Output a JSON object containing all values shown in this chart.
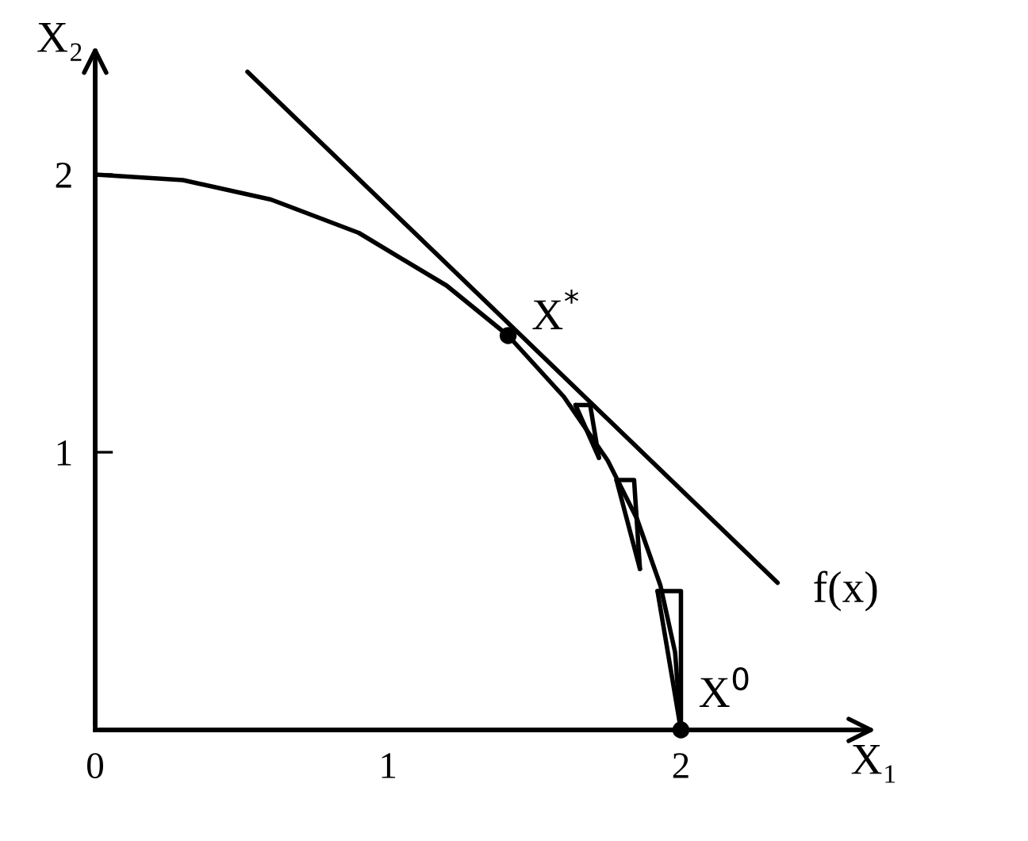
{
  "chart_data": {
    "type": "line",
    "xlabel": "X₁",
    "ylabel": "X₂",
    "xlim": [
      0,
      2.6
    ],
    "ylim": [
      0,
      2.4
    ],
    "xticks": [
      0,
      1,
      2
    ],
    "yticks": [
      1,
      2
    ],
    "grid": false,
    "legend": false,
    "series": [
      {
        "color": "#000000",
        "x": [
          0,
          0.3,
          0.6,
          0.9,
          1.2,
          1.41,
          1.6,
          1.75,
          1.85,
          1.93,
          1.98,
          2.0
        ],
        "values": [
          2.0,
          1.98,
          1.91,
          1.79,
          1.6,
          1.42,
          1.2,
          0.97,
          0.76,
          0.52,
          0.28,
          0
        ]
      },
      {
        "color": "#000000",
        "x": [
          0.52,
          2.33
        ],
        "values": [
          2.37,
          0.53
        ]
      },
      {
        "color": "#000000",
        "x": [
          1.92,
          2.0,
          2.0
        ],
        "values": [
          0.5,
          0.5,
          0
        ]
      },
      {
        "color": "#000000",
        "x": [
          1.92,
          2.0
        ],
        "values": [
          0.5,
          0
        ]
      },
      {
        "color": "#000000",
        "x": [
          1.78,
          1.84,
          1.86
        ],
        "values": [
          0.9,
          0.9,
          0.58
        ]
      },
      {
        "color": "#000000",
        "x": [
          1.78,
          1.86
        ],
        "values": [
          0.9,
          0.58
        ]
      },
      {
        "color": "#000000",
        "x": [
          1.64,
          1.69,
          1.72
        ],
        "values": [
          1.17,
          1.17,
          0.98
        ]
      },
      {
        "color": "#000000",
        "x": [
          1.64,
          1.72
        ],
        "values": [
          1.17,
          0.98
        ]
      },
      {
        "type": "scatter",
        "marker": "circle",
        "color": "#000000",
        "x": [
          1.41,
          2.0
        ],
        "values": [
          1.42,
          0
        ]
      }
    ],
    "annotations": [
      {
        "text": "X$^{*}$",
        "x": 1.41,
        "y": 1.42
      },
      {
        "text": "X$^{0}$",
        "x": 2.0,
        "y": 0
      },
      {
        "text": "f(x)",
        "x": 2.33,
        "y": 0.53
      }
    ]
  }
}
